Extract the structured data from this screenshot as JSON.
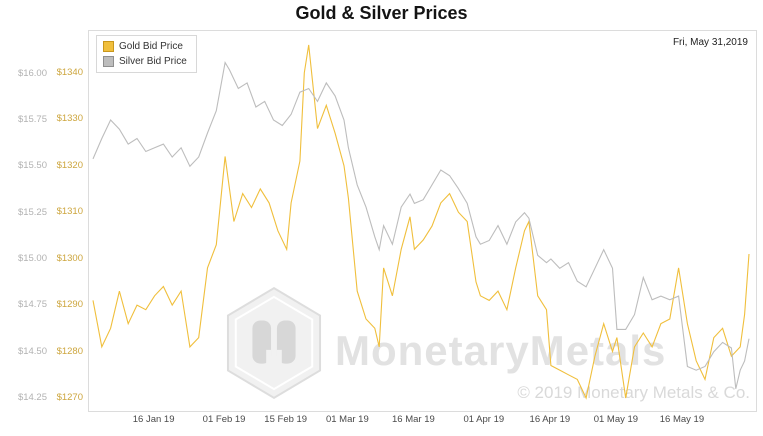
{
  "chart_data": {
    "type": "line",
    "title": "Gold & Silver Prices",
    "date_label": "Fri, May 31,2019",
    "watermark": {
      "text": "MonetaryMetals",
      "copyright": "© 2019 Monetary Metals & Co."
    },
    "x_range_days": 149,
    "x_ticks": {
      "days": [
        14,
        30,
        44,
        58,
        73,
        89,
        104,
        119,
        134
      ],
      "labels": [
        "16 Jan 19",
        "01 Feb 19",
        "15 Feb 19",
        "01 Mar 19",
        "16 Mar 19",
        "01 Apr 19",
        "16 Apr 19",
        "01 May 19",
        "16 May 19"
      ]
    },
    "axes": {
      "gold": {
        "label_color": "#cda63e",
        "min": 1267.2,
        "max": 1349.0,
        "ticks": [
          1340,
          1330,
          1320,
          1310,
          1300,
          1290,
          1280,
          1270
        ],
        "labels": [
          "$1340",
          "$1330",
          "$1320",
          "$1310",
          "$1300",
          "$1290",
          "$1280",
          "$1270"
        ]
      },
      "silver": {
        "label_color": "#b2b2b2",
        "min": 14.18,
        "max": 16.23,
        "ticks": [
          16.0,
          15.75,
          15.5,
          15.25,
          15.0,
          14.75,
          14.5,
          14.25
        ],
        "labels": [
          "$16.00",
          "$15.75",
          "$15.50",
          "$15.25",
          "$15.00",
          "$14.75",
          "$14.50",
          "$14.25"
        ]
      }
    },
    "series": [
      {
        "name": "Gold Bid Price",
        "axis": "gold",
        "color": "#f0bf3c",
        "swatch_border": "#c9971c",
        "x": [
          0,
          2,
          4,
          6,
          8,
          10,
          12,
          14,
          16,
          18,
          20,
          22,
          24,
          26,
          28,
          30,
          32,
          34,
          36,
          38,
          40,
          42,
          44,
          45,
          47,
          48,
          49,
          51,
          53,
          55,
          57,
          58,
          60,
          62,
          64,
          65,
          66,
          68,
          70,
          72,
          73,
          75,
          77,
          79,
          81,
          83,
          85,
          87,
          88,
          90,
          92,
          94,
          96,
          98,
          99,
          101,
          103,
          104,
          106,
          108,
          110,
          112,
          114,
          116,
          118,
          119,
          121,
          123,
          125,
          127,
          129,
          131,
          133,
          135,
          137,
          139,
          141,
          143,
          145,
          147,
          148,
          149
        ],
        "values": [
          1291,
          1281,
          1285,
          1293,
          1286,
          1290,
          1289,
          1292,
          1294,
          1290,
          1293,
          1281,
          1283,
          1298,
          1303,
          1322,
          1308,
          1314,
          1311,
          1315,
          1312,
          1306,
          1302,
          1312,
          1321,
          1340,
          1346,
          1328,
          1333,
          1327,
          1320,
          1313,
          1293,
          1287,
          1285,
          1281,
          1298,
          1292,
          1302,
          1309,
          1302,
          1304,
          1307,
          1312,
          1314,
          1310,
          1308,
          1295,
          1292,
          1291,
          1293,
          1289,
          1298,
          1306,
          1308,
          1292,
          1289,
          1277,
          1276,
          1275,
          1274,
          1270,
          1279,
          1286,
          1280,
          1283,
          1270,
          1281,
          1284,
          1281,
          1286,
          1287,
          1298,
          1286,
          1278,
          1274,
          1283,
          1285,
          1279,
          1281,
          1288,
          1301
        ]
      },
      {
        "name": "Silver Bid Price",
        "axis": "silver",
        "color": "#bdbdbd",
        "swatch_border": "#8f8f8f",
        "x": [
          0,
          2,
          4,
          6,
          8,
          10,
          12,
          14,
          16,
          18,
          20,
          22,
          24,
          26,
          28,
          30,
          31,
          33,
          35,
          37,
          39,
          41,
          43,
          45,
          47,
          49,
          51,
          53,
          55,
          57,
          58,
          60,
          62,
          64,
          65,
          66,
          68,
          70,
          72,
          73,
          75,
          77,
          79,
          81,
          83,
          85,
          87,
          88,
          90,
          92,
          94,
          96,
          98,
          99,
          101,
          103,
          104,
          106,
          108,
          110,
          112,
          114,
          116,
          118,
          119,
          121,
          123,
          125,
          127,
          129,
          131,
          133,
          135,
          137,
          139,
          141,
          143,
          145,
          146,
          147,
          148,
          149
        ],
        "values": [
          15.54,
          15.65,
          15.75,
          15.7,
          15.62,
          15.65,
          15.58,
          15.6,
          15.62,
          15.55,
          15.6,
          15.5,
          15.55,
          15.68,
          15.8,
          16.06,
          16.02,
          15.92,
          15.95,
          15.82,
          15.85,
          15.75,
          15.72,
          15.78,
          15.9,
          15.92,
          15.85,
          15.95,
          15.88,
          15.75,
          15.6,
          15.4,
          15.28,
          15.12,
          15.05,
          15.18,
          15.08,
          15.28,
          15.35,
          15.3,
          15.32,
          15.4,
          15.48,
          15.45,
          15.38,
          15.3,
          15.12,
          15.08,
          15.1,
          15.18,
          15.08,
          15.2,
          15.25,
          15.22,
          15.02,
          14.98,
          15.0,
          14.95,
          14.98,
          14.88,
          14.85,
          14.95,
          15.05,
          14.95,
          14.62,
          14.62,
          14.7,
          14.9,
          14.78,
          14.8,
          14.78,
          14.8,
          14.42,
          14.4,
          14.42,
          14.5,
          14.55,
          14.52,
          14.3,
          14.4,
          14.45,
          14.57
        ]
      }
    ]
  }
}
